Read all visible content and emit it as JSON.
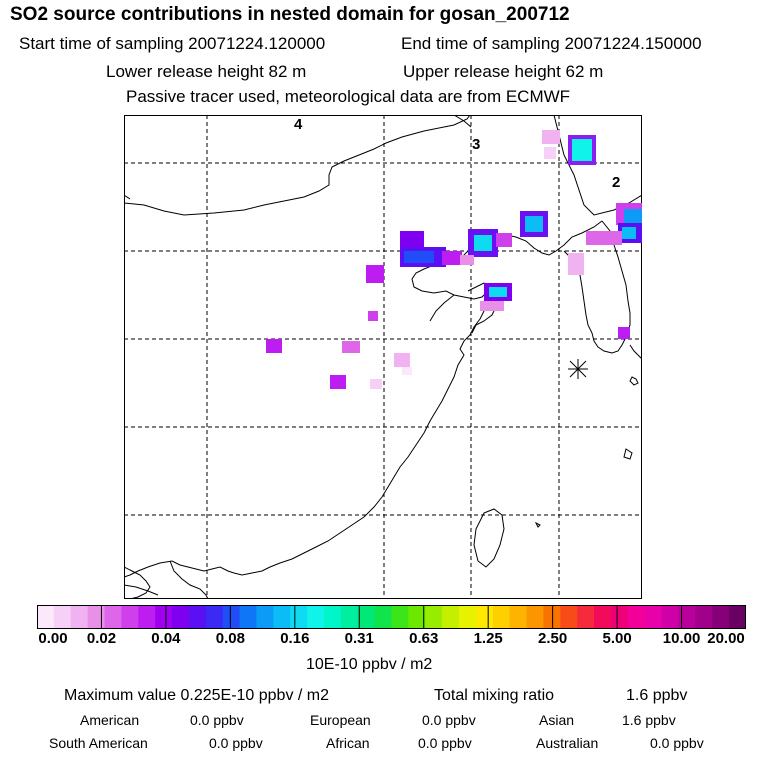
{
  "header": {
    "title": "SO2 source contributions in nested domain for gosan_200712",
    "start_time": "Start time of sampling 20071224.120000",
    "end_time": "End time of sampling 20071224.150000",
    "lower_height": "Lower release height   82 m",
    "upper_height": "Upper release height   62 m",
    "note": "Passive tracer used, meteorological data are from ECMWF"
  },
  "map": {
    "region_labels": [
      "4",
      "3",
      "2"
    ],
    "receptor_marker": "gosan receptor"
  },
  "colorbar": {
    "ticks": [
      "0.00",
      "0.02",
      "0.04",
      "0.08",
      "0.16",
      "0.31",
      "0.63",
      "1.25",
      "2.50",
      "5.00",
      "10.00",
      "20.00"
    ],
    "colors": [
      "#fbe9fb",
      "#f6d0f6",
      "#f0b2f0",
      "#e88fe8",
      "#de66e8",
      "#cf3fec",
      "#bd1df0",
      "#a000f0",
      "#7f00f0",
      "#5a10f2",
      "#3a2af4",
      "#1f4ef6",
      "#0f76f8",
      "#0c9cf8",
      "#0bbcf7",
      "#0edaf2",
      "#10f3ea",
      "#00f5c8",
      "#00eea0",
      "#00e878",
      "#10e44a",
      "#3ce51a",
      "#6ce800",
      "#98ec00",
      "#c4f000",
      "#e6f200",
      "#fde800",
      "#fed000",
      "#fdb300",
      "#fb9500",
      "#f97300",
      "#f74c1a",
      "#f52a3a",
      "#f20b5a",
      "#f00078",
      "#f20099",
      "#e800a8",
      "#d000a8",
      "#b8009a",
      "#a0008a",
      "#86007a",
      "#6a0064"
    ]
  },
  "units": "10E-10 ppbv / m2",
  "summary": {
    "max_value": "Maximum value  0.225E-10 ppbv / m2",
    "total_mixing": "Total mixing ratio",
    "total_mixing_value": "1.6 ppbv"
  },
  "regions": [
    {
      "name": "American",
      "value": "0.0 ppbv"
    },
    {
      "name": "European",
      "value": "0.0 ppbv"
    },
    {
      "name": "Asian",
      "value": "1.6 ppbv"
    },
    {
      "name": "South American",
      "value": "0.0 ppbv"
    },
    {
      "name": "African",
      "value": "0.0 ppbv"
    },
    {
      "name": "Australian",
      "value": "0.0 ppbv"
    }
  ]
}
